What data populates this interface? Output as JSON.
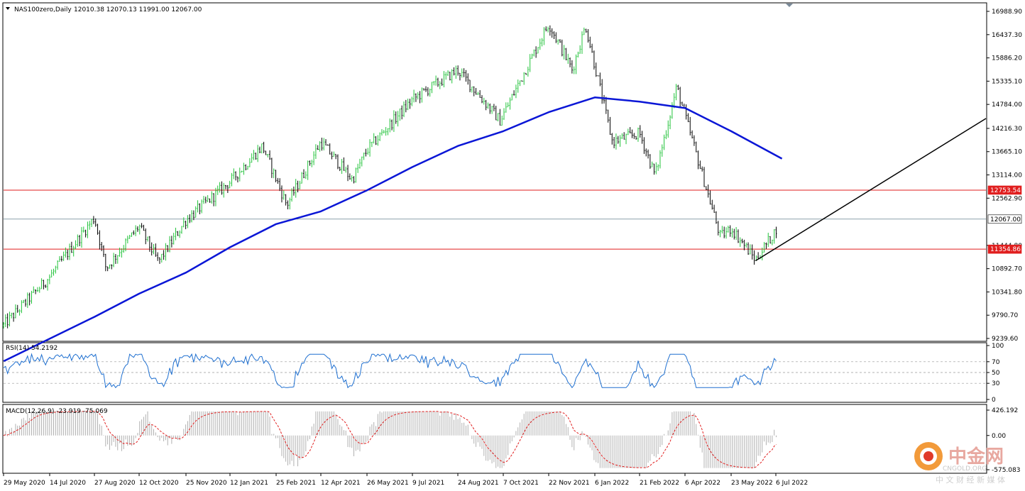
{
  "main_header": {
    "symbol": "NAS100zero,Daily",
    "ohlc": "12010.38 12070.13 11991.00 12067.00"
  },
  "rsi_header": "RSI(14) 54.2192",
  "macd_header": "MACD(12,26,9) -23.919 -75.069",
  "colors": {
    "bull_candle": "#22c33a",
    "bear_candle": "#000000",
    "moving_average": "#0a16d6",
    "horizontal_line": "#e01e1e",
    "trendline": "#000000",
    "rsi_line": "#1e6fd0",
    "macd_hist": "#b0b0b0",
    "macd_signal": "#e01e1e",
    "current_price_line": "#4a6a7a"
  },
  "price_axis_labels": [
    "16988.90",
    "16437.30",
    "15886.20",
    "15335.10",
    "14784.00",
    "14216.30",
    "13665.10",
    "13114.00",
    "12562.90",
    "11444.80",
    "10892.70",
    "10341.80",
    "9790.70",
    "9239.60"
  ],
  "price_tags": [
    {
      "value": "12753.54",
      "fill": "#e01e1e",
      "text_color": "#ffffff"
    },
    {
      "value": "12067.00",
      "fill": "#ffffff",
      "text_color": "#000000"
    },
    {
      "value": "11354.86",
      "fill": "#e01e1e",
      "text_color": "#ffffff"
    }
  ],
  "rsi_axis_labels": [
    "100",
    "70",
    "50",
    "30",
    "0"
  ],
  "macd_axis_labels": [
    "426.192",
    "0.00",
    "-575.083"
  ],
  "date_labels": [
    "29 May 2020",
    "14 Jul 2020",
    "27 Aug 2020",
    "12 Oct 2020",
    "25 Nov 2020",
    "12 Jan 2021",
    "25 Feb 2021",
    "12 Apr 2021",
    "26 May 2021",
    "9 Jul 2021",
    "24 Aug 2021",
    "7 Oct 2021",
    "22 Nov 2021",
    "6 Jan 2022",
    "21 Feb 2022",
    "6 Apr 2022",
    "23 May 2022",
    "6 Jul 2022"
  ],
  "watermark": {
    "brand": "中金网",
    "domain": "CNGOLD.ORG",
    "tagline": "中 文 财 经 新 媒 体"
  },
  "chart_data": {
    "type": "candlestick",
    "symbol": "NAS100zero",
    "timeframe": "Daily",
    "last_bar": {
      "open": 12010.38,
      "high": 12070.13,
      "low": 11991.0,
      "close": 12067.0
    },
    "y_range": [
      9239.6,
      16988.9
    ],
    "close_path": [
      [
        "29 May 2020",
        9550
      ],
      [
        "14 Jul 2020",
        10700
      ],
      [
        "27 Aug 2020",
        12100
      ],
      [
        "8 Sep 2020",
        10900
      ],
      [
        "12 Oct 2020",
        11900
      ],
      [
        "30 Oct 2020",
        11050
      ],
      [
        "25 Nov 2020",
        12050
      ],
      [
        "12 Jan 2021",
        12950
      ],
      [
        "12 Feb 2021",
        13800
      ],
      [
        "8 Mar 2021",
        12400
      ],
      [
        "12 Apr 2021",
        13900
      ],
      [
        "12 May 2021",
        13000
      ],
      [
        "26 May 2021",
        13700
      ],
      [
        "9 Jul 2021",
        14900
      ],
      [
        "24 Aug 2021",
        15600
      ],
      [
        "4 Oct 2021",
        14400
      ],
      [
        "22 Nov 2021",
        16700
      ],
      [
        "15 Dec 2021",
        15600
      ],
      [
        "28 Dec 2021",
        16650
      ],
      [
        "24 Jan 2022",
        13900
      ],
      [
        "21 Feb 2022",
        14100
      ],
      [
        "8 Mar 2022",
        13100
      ],
      [
        "29 Mar 2022",
        15200
      ],
      [
        "12 May 2022",
        11650
      ],
      [
        "23 May 2022",
        11850
      ],
      [
        "16 Jun 2022",
        11100
      ],
      [
        "6 Jul 2022",
        11800
      ],
      [
        "8 Jul 2022",
        12067
      ]
    ],
    "moving_average": [
      [
        "29 May 2020",
        8700
      ],
      [
        "27 Aug 2020",
        9750
      ],
      [
        "12 Oct 2020",
        10300
      ],
      [
        "25 Nov 2020",
        10800
      ],
      [
        "12 Jan 2021",
        11400
      ],
      [
        "25 Feb 2021",
        11950
      ],
      [
        "12 Apr 2021",
        12250
      ],
      [
        "26 May 2021",
        12750
      ],
      [
        "9 Jul 2021",
        13300
      ],
      [
        "24 Aug 2021",
        13800
      ],
      [
        "7 Oct 2021",
        14150
      ],
      [
        "22 Nov 2021",
        14600
      ],
      [
        "6 Jan 2022",
        14950
      ],
      [
        "21 Feb 2022",
        14850
      ],
      [
        "6 Apr 2022",
        14700
      ],
      [
        "23 May 2022",
        14150
      ],
      [
        "12 Jul 2022",
        13500
      ]
    ],
    "horizontal_levels": [
      12753.54,
      11354.86
    ],
    "current_price": 12067.0,
    "trendline": [
      [
        "16 Jun 2022",
        11080
      ],
      [
        "right edge",
        14450
      ]
    ],
    "indicators": {
      "rsi": {
        "period": 14,
        "value": 54.2192,
        "levels": [
          70,
          50,
          30
        ],
        "range": [
          0,
          100
        ]
      },
      "macd": {
        "fast": 12,
        "slow": 26,
        "signal": 9,
        "main": -23.919,
        "signal_value": -75.069,
        "range": [
          -575.083,
          426.192
        ]
      }
    }
  }
}
